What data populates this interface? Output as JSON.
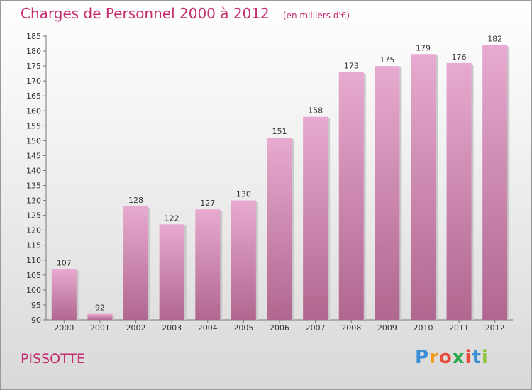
{
  "chart_data": {
    "type": "bar",
    "title": "Charges de Personnel 2000 à 2012",
    "subtitle": "(en milliers d'€)",
    "categories": [
      "2000",
      "2001",
      "2002",
      "2003",
      "2004",
      "2005",
      "2006",
      "2007",
      "2008",
      "2009",
      "2010",
      "2011",
      "2012"
    ],
    "values": [
      107,
      92,
      128,
      122,
      127,
      130,
      151,
      158,
      173,
      175,
      179,
      176,
      182
    ],
    "ylim": [
      90,
      185
    ],
    "yticks": [
      90,
      95,
      100,
      105,
      110,
      115,
      120,
      125,
      130,
      135,
      140,
      145,
      150,
      155,
      160,
      165,
      170,
      175,
      180,
      185
    ],
    "grid": false,
    "bar_color": "#d68ab5",
    "label_color": "#333333"
  },
  "commune": "PISSOTTE",
  "logo": {
    "letters": [
      "P",
      "r",
      "o",
      "x",
      "i",
      "t",
      "i"
    ],
    "colors": [
      "#3a8fd6",
      "#f39a1c",
      "#e84a3c",
      "#2aa84a",
      "#e84a3c",
      "#3a8fd6",
      "#8cc63f"
    ]
  }
}
